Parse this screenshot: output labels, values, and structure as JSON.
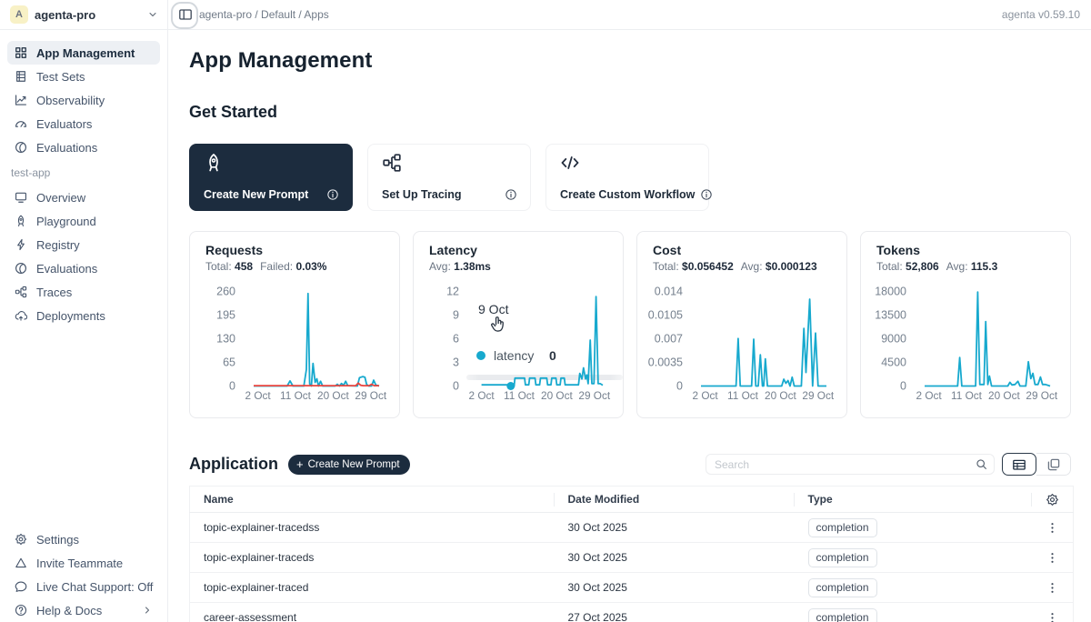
{
  "app": {
    "breadcrumb": "agenta-pro / Default / Apps",
    "version": "agenta v0.59.10"
  },
  "workspace": {
    "initial": "A",
    "name": "agenta-pro"
  },
  "sidebar": {
    "top_items": [
      {
        "label": "App Management",
        "icon": "grid-icon",
        "active": true
      },
      {
        "label": "Test Sets",
        "icon": "table-rows-icon",
        "active": false
      },
      {
        "label": "Observability",
        "icon": "line-chart-icon",
        "active": false
      },
      {
        "label": "Evaluators",
        "icon": "gauge-icon",
        "active": false
      },
      {
        "label": "Evaluations",
        "icon": "evaluations-icon",
        "active": false
      }
    ],
    "section_label": "test-app",
    "app_items": [
      {
        "label": "Overview",
        "icon": "monitor-icon"
      },
      {
        "label": "Playground",
        "icon": "rocket-icon"
      },
      {
        "label": "Registry",
        "icon": "lightning-icon"
      },
      {
        "label": "Evaluations",
        "icon": "evaluations-icon"
      },
      {
        "label": "Traces",
        "icon": "tree-icon"
      },
      {
        "label": "Deployments",
        "icon": "cloud-icon"
      }
    ],
    "bottom_items": [
      {
        "label": "Settings",
        "icon": "gear-icon"
      },
      {
        "label": "Invite Teammate",
        "icon": "invite-icon"
      },
      {
        "label": "Live Chat Support: Off",
        "icon": "chat-icon"
      },
      {
        "label": "Help & Docs",
        "icon": "help-icon",
        "chevron": true
      }
    ]
  },
  "page": {
    "title": "App Management",
    "get_started_title": "Get Started"
  },
  "get_started_cards": [
    {
      "label": "Create New Prompt",
      "icon": "rocket-icon",
      "dark": true
    },
    {
      "label": "Set Up Tracing",
      "icon": "tree-icon",
      "dark": false
    },
    {
      "label": "Create Custom Workflow",
      "icon": "code-icon",
      "dark": false
    }
  ],
  "latency_tooltip": {
    "date": "9 Oct",
    "series": "latency",
    "value": "0",
    "marker_day": 9,
    "marker_value": 0
  },
  "application": {
    "title": "Application",
    "create_button": "Create New Prompt",
    "search_placeholder": "Search",
    "table": {
      "headers": [
        "Name",
        "Date Modified",
        "Type"
      ],
      "rows": [
        {
          "name": "topic-explainer-tracedss",
          "date": "30 Oct 2025",
          "type": "completion"
        },
        {
          "name": "topic-explainer-traceds",
          "date": "30 Oct 2025",
          "type": "completion"
        },
        {
          "name": "topic-explainer-traced",
          "date": "30 Oct 2025",
          "type": "completion"
        },
        {
          "name": "career-assessment",
          "date": "27 Oct 2025",
          "type": "completion"
        }
      ]
    }
  },
  "colors": {
    "accent_cyan": "#17a9ce",
    "failed_red": "#e8453f",
    "dark_navy": "#1c2c3e",
    "muted": "#75808e"
  },
  "chart_data": [
    {
      "type": "line",
      "title": "Requests",
      "stats": [
        {
          "label": "Total:",
          "value": "458"
        },
        {
          "label": "Failed:",
          "value": "0.03%"
        }
      ],
      "xlabel": "",
      "ylabel": "",
      "y_ticks": [
        "260",
        "195",
        "130",
        "65",
        "0"
      ],
      "y_max": 260,
      "x_ticks": [
        "2 Oct",
        "11 Oct",
        "20 Oct",
        "29 Oct"
      ],
      "x_tick_days": [
        2,
        11,
        20,
        29
      ],
      "x_range": [
        1,
        31
      ],
      "series": [
        {
          "name": "requests",
          "color": "#17a9ce",
          "points": [
            [
              1,
              0
            ],
            [
              9,
              0
            ],
            [
              9.7,
              14
            ],
            [
              10.4,
              0
            ],
            [
              13,
              0
            ],
            [
              13.6,
              45
            ],
            [
              14,
              253
            ],
            [
              14.4,
              6
            ],
            [
              14.8,
              0
            ],
            [
              15.2,
              62
            ],
            [
              15.7,
              10
            ],
            [
              16.1,
              20
            ],
            [
              16.5,
              0
            ],
            [
              17,
              13
            ],
            [
              17.5,
              0
            ],
            [
              20.5,
              0
            ],
            [
              21,
              5
            ],
            [
              21.5,
              0
            ],
            [
              22,
              7
            ],
            [
              22.5,
              2
            ],
            [
              23,
              13
            ],
            [
              23.5,
              1
            ],
            [
              25.8,
              0
            ],
            [
              26.3,
              23
            ],
            [
              27.1,
              26
            ],
            [
              27.6,
              24
            ],
            [
              28,
              5
            ],
            [
              28.5,
              0
            ],
            [
              29.2,
              0
            ],
            [
              29.7,
              16
            ],
            [
              30.2,
              3
            ],
            [
              31,
              0
            ]
          ]
        },
        {
          "name": "failed",
          "color": "#e8453f",
          "points": [
            [
              1,
              1
            ],
            [
              25.4,
              1
            ],
            [
              26,
              8
            ],
            [
              26.6,
              2
            ],
            [
              27.2,
              1
            ],
            [
              28.6,
              1
            ],
            [
              29.2,
              5
            ],
            [
              29.8,
              1
            ],
            [
              31,
              1
            ]
          ]
        }
      ]
    },
    {
      "type": "line",
      "title": "Latency",
      "stats": [
        {
          "label": "Avg:",
          "value": "1.38ms"
        }
      ],
      "xlabel": "",
      "ylabel": "",
      "y_ticks": [
        "12",
        "9",
        "6",
        "3",
        "0"
      ],
      "y_max": 12,
      "x_ticks": [
        "2 Oct",
        "11 Oct",
        "20 Oct",
        "29 Oct"
      ],
      "x_tick_days": [
        2,
        11,
        20,
        29
      ],
      "x_range": [
        1,
        31
      ],
      "series": [
        {
          "name": "latency",
          "color": "#17a9ce",
          "points": [
            [
              2,
              0.15
            ],
            [
              8.5,
              0.15
            ],
            [
              9,
              0
            ],
            [
              9.8,
              0
            ],
            [
              10,
              1
            ],
            [
              12.3,
              1
            ],
            [
              12.5,
              0.15
            ],
            [
              13.3,
              0.15
            ],
            [
              13.5,
              1
            ],
            [
              14.8,
              1
            ],
            [
              15,
              0.15
            ],
            [
              15.9,
              0.15
            ],
            [
              16.1,
              1
            ],
            [
              17.6,
              1
            ],
            [
              17.8,
              0.15
            ],
            [
              18.6,
              0.15
            ],
            [
              18.8,
              1
            ],
            [
              19.8,
              1
            ],
            [
              20,
              0.15
            ],
            [
              20.8,
              0.15
            ],
            [
              21,
              1
            ],
            [
              21.8,
              1
            ],
            [
              22,
              0.15
            ],
            [
              25.2,
              0.15
            ],
            [
              25.5,
              1.6
            ],
            [
              26,
              0.9
            ],
            [
              26.4,
              2.3
            ],
            [
              26.9,
              0.9
            ],
            [
              27.2,
              1.4
            ],
            [
              27.5,
              0.3
            ],
            [
              28,
              5.8
            ],
            [
              28.4,
              0.3
            ],
            [
              28.9,
              0.3
            ],
            [
              29.4,
              11.3
            ],
            [
              29.9,
              0.3
            ],
            [
              30.4,
              0.3
            ],
            [
              31,
              0.1
            ]
          ]
        }
      ]
    },
    {
      "type": "line",
      "title": "Cost",
      "stats": [
        {
          "label": "Total:",
          "value": "$0.056452"
        },
        {
          "label": "Avg:",
          "value": "$0.000123"
        }
      ],
      "xlabel": "",
      "ylabel": "",
      "y_ticks": [
        "0.014",
        "0.0105",
        "0.007",
        "0.0035",
        "0"
      ],
      "y_max": 0.014,
      "x_ticks": [
        "2 Oct",
        "11 Oct",
        "20 Oct",
        "29 Oct"
      ],
      "x_tick_days": [
        2,
        11,
        20,
        29
      ],
      "x_range": [
        1,
        31
      ],
      "series": [
        {
          "name": "cost",
          "color": "#17a9ce",
          "points": [
            [
              1,
              0
            ],
            [
              9.4,
              0
            ],
            [
              9.9,
              0.007
            ],
            [
              10.4,
              0
            ],
            [
              13.1,
              0
            ],
            [
              13.6,
              0.0069
            ],
            [
              14.1,
              0
            ],
            [
              14.7,
              0
            ],
            [
              15.2,
              0.0046
            ],
            [
              15.7,
              0
            ],
            [
              16,
              0
            ],
            [
              16.4,
              0.004
            ],
            [
              16.9,
              0
            ],
            [
              20.3,
              0
            ],
            [
              20.8,
              0.001
            ],
            [
              21.3,
              0.0004
            ],
            [
              21.8,
              0.0008
            ],
            [
              22.3,
              0
            ],
            [
              22.8,
              0.0013
            ],
            [
              23.3,
              0
            ],
            [
              25,
              0
            ],
            [
              25.6,
              0.0085
            ],
            [
              26.1,
              0.002
            ],
            [
              27,
              0.0128
            ],
            [
              27.7,
              0
            ],
            [
              28.4,
              0.0078
            ],
            [
              29,
              0
            ],
            [
              31,
              0
            ]
          ]
        }
      ]
    },
    {
      "type": "line",
      "title": "Tokens",
      "stats": [
        {
          "label": "Total:",
          "value": "52,806"
        },
        {
          "label": "Avg:",
          "value": "115.3"
        }
      ],
      "xlabel": "",
      "ylabel": "",
      "y_ticks": [
        "18000",
        "13500",
        "9000",
        "4500",
        "0"
      ],
      "y_max": 18000,
      "x_ticks": [
        "2 Oct",
        "11 Oct",
        "20 Oct",
        "29 Oct"
      ],
      "x_tick_days": [
        2,
        11,
        20,
        29
      ],
      "x_range": [
        1,
        31
      ],
      "series": [
        {
          "name": "tokens",
          "color": "#17a9ce",
          "points": [
            [
              1,
              0
            ],
            [
              8.9,
              0
            ],
            [
              9.4,
              5400
            ],
            [
              9.9,
              0
            ],
            [
              13.2,
              0
            ],
            [
              13.7,
              17800
            ],
            [
              14.2,
              300
            ],
            [
              15.2,
              300
            ],
            [
              15.6,
              12200
            ],
            [
              16.1,
              300
            ],
            [
              16.5,
              1900
            ],
            [
              17,
              0
            ],
            [
              20.9,
              0
            ],
            [
              21.4,
              700
            ],
            [
              21.9,
              200
            ],
            [
              22.6,
              300
            ],
            [
              23.3,
              900
            ],
            [
              23.8,
              0
            ],
            [
              25.2,
              0
            ],
            [
              25.8,
              4600
            ],
            [
              26.4,
              1400
            ],
            [
              26.9,
              2400
            ],
            [
              27.4,
              300
            ],
            [
              28.1,
              300
            ],
            [
              28.7,
              1700
            ],
            [
              29.2,
              300
            ],
            [
              29.9,
              300
            ],
            [
              31,
              0
            ]
          ]
        }
      ]
    }
  ]
}
